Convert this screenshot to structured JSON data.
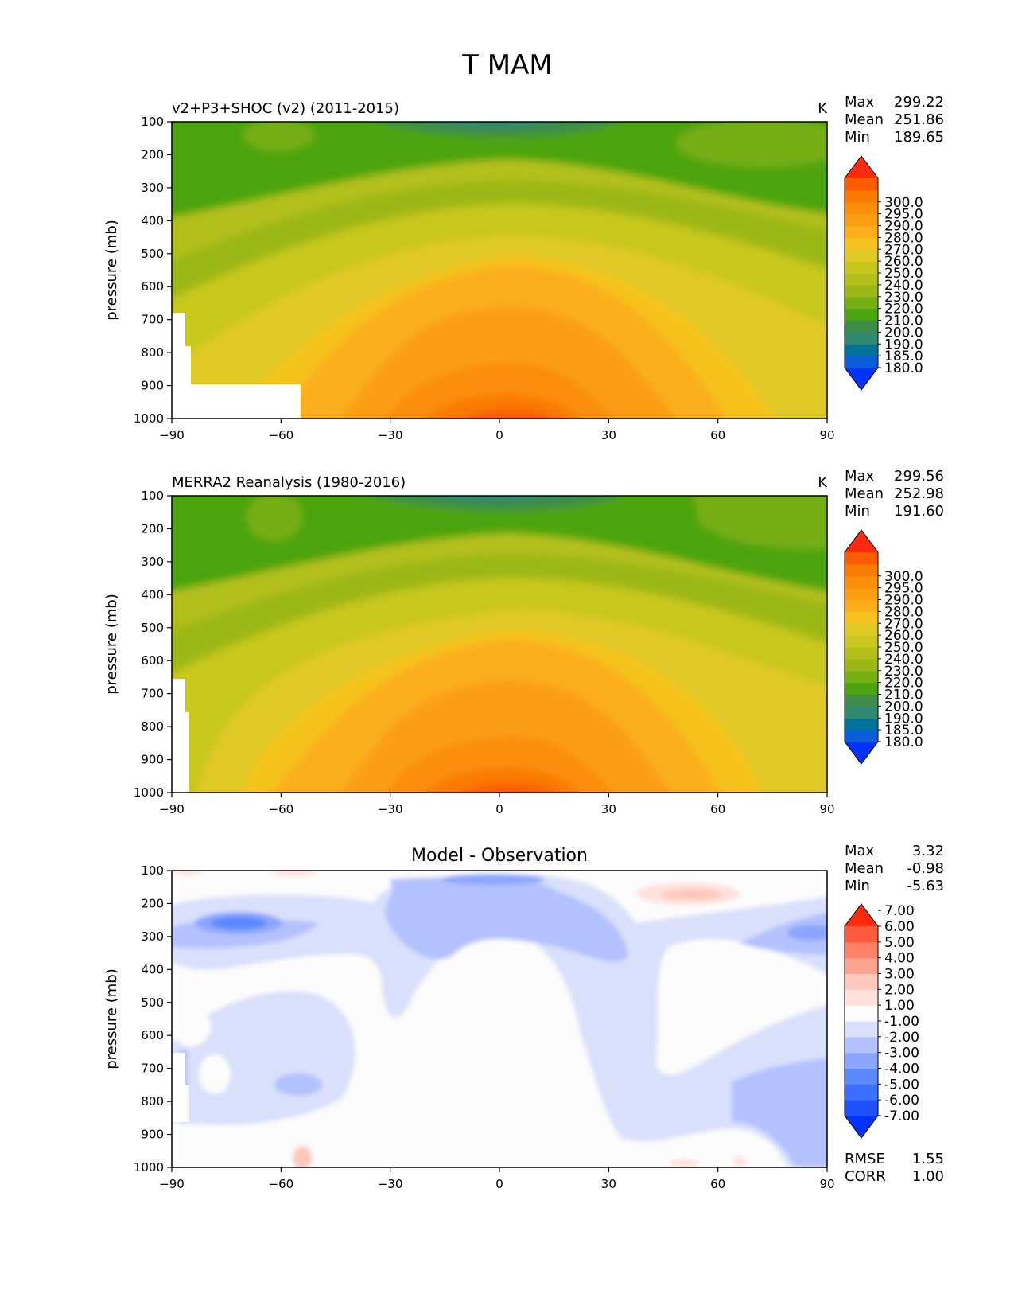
{
  "figure": {
    "title": "T MAM"
  },
  "common": {
    "ylabel": "pressure (mb)",
    "yticks": [
      100,
      200,
      300,
      400,
      500,
      600,
      700,
      800,
      900,
      1000
    ],
    "xticks": [
      -90,
      -60,
      -30,
      0,
      30,
      60,
      90
    ],
    "xtick_labels": [
      "−90",
      "−60",
      "−30",
      "0",
      "30",
      "60",
      "90"
    ],
    "stat_labels": [
      "Max",
      "Mean",
      "Min"
    ]
  },
  "colors": {
    "temp_scale": [
      "#0033ff",
      "#0a5fd9",
      "#00739a",
      "#318a70",
      "#3d8c48",
      "#4ba40f",
      "#76ae13",
      "#9cb817",
      "#b3c01c",
      "#c8c71e",
      "#e0c926",
      "#f5c21e",
      "#fbae1a",
      "#fb9e12",
      "#fb8e0a",
      "#fb7a00",
      "#fb5c00",
      "#ff2a0e"
    ],
    "diff_scale": [
      "#0033ff",
      "#1e50ff",
      "#3c6eff",
      "#5a88ff",
      "#8ca5ff",
      "#b3c1ff",
      "#d9e0fb",
      "#fcfcfc",
      "#ffe1dc",
      "#ffc8bc",
      "#ffa391",
      "#ff8068",
      "#ff5a3e",
      "#ff2a0e"
    ]
  },
  "chart_data": [
    {
      "type": "contour",
      "panel": "test",
      "title_left": "v2+P3+SHOC (v2) (2011-2015)",
      "units": "K",
      "xlabel": "",
      "ylabel": "pressure (mb)",
      "xlim": [
        -90,
        90
      ],
      "ylim": [
        1000,
        100
      ],
      "stats": {
        "max": "299.22",
        "mean": "251.86",
        "min": "189.65"
      },
      "colorbar_levels": [
        "180.0",
        "185.0",
        "190.0",
        "200.0",
        "210.0",
        "220.0",
        "230.0",
        "240.0",
        "250.0",
        "260.0",
        "270.0",
        "280.0",
        "290.0",
        "295.0",
        "300.0"
      ],
      "approx_profile": {
        "lat": [
          -90,
          -60,
          -30,
          0,
          30,
          60,
          90
        ],
        "pressure": [
          100,
          200,
          300,
          400,
          500,
          600,
          700,
          800,
          900,
          1000
        ],
        "temperature_at_equator": [
          200,
          210,
          235,
          252,
          265,
          275,
          282,
          288,
          292,
          297
        ],
        "temperature_at_60": [
          218,
          217,
          222,
          235,
          248,
          258,
          265,
          270,
          275,
          280
        ]
      }
    },
    {
      "type": "contour",
      "panel": "reference",
      "title_left": "MERRA2 Reanalysis (1980-2016)",
      "units": "K",
      "xlabel": "",
      "ylabel": "pressure (mb)",
      "xlim": [
        -90,
        90
      ],
      "ylim": [
        1000,
        100
      ],
      "stats": {
        "max": "299.56",
        "mean": "252.98",
        "min": "191.60"
      },
      "colorbar_levels": [
        "180.0",
        "185.0",
        "190.0",
        "200.0",
        "210.0",
        "220.0",
        "230.0",
        "240.0",
        "250.0",
        "260.0",
        "270.0",
        "280.0",
        "290.0",
        "295.0",
        "300.0"
      ],
      "approx_profile": {
        "lat": [
          -90,
          -60,
          -30,
          0,
          30,
          60,
          90
        ],
        "pressure": [
          100,
          200,
          300,
          400,
          500,
          600,
          700,
          800,
          900,
          1000
        ],
        "temperature_at_equator": [
          200,
          212,
          236,
          252,
          265,
          275,
          282,
          288,
          293,
          297
        ]
      }
    },
    {
      "type": "contour",
      "panel": "difference",
      "title_center": "Model - Observation",
      "units": "",
      "xlabel": "",
      "ylabel": "pressure (mb)",
      "xlim": [
        -90,
        90
      ],
      "ylim": [
        1000,
        100
      ],
      "stats": {
        "max": "3.32",
        "mean": "-0.98",
        "min": "-5.63"
      },
      "metrics": {
        "rmse_label": "RMSE",
        "rmse": "1.55",
        "corr_label": "CORR",
        "corr": "1.00"
      },
      "colorbar_levels": [
        "-7.00",
        "-6.00",
        "-5.00",
        "-4.00",
        "-3.00",
        "-2.00",
        "-1.00",
        "1.00",
        "2.00",
        "3.00",
        "4.00",
        "5.00",
        "6.00",
        "7.00"
      ]
    }
  ]
}
